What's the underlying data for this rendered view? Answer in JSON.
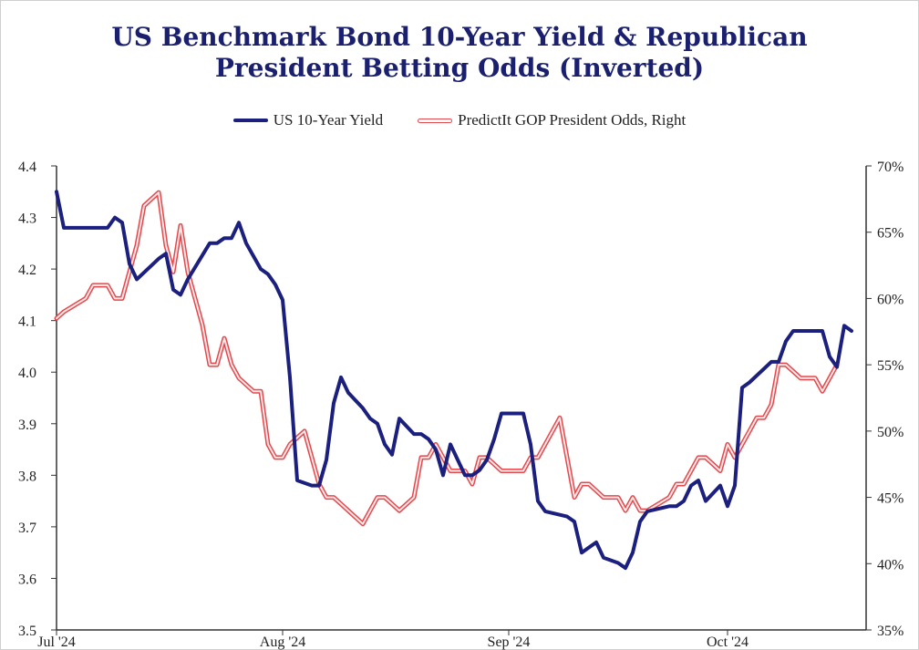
{
  "chart_data": {
    "type": "line",
    "title_line1": "US Benchmark Bond 10-Year Yield & Republican",
    "title_line2": "President Betting Odds (Inverted)",
    "legend": [
      "US 10-Year Yield",
      "PredictIt GOP President Odds, Right"
    ],
    "x_ticks": [
      "Jul '24",
      "Aug '24",
      "Sep '24",
      "Oct '24"
    ],
    "y_left": {
      "min": 3.5,
      "max": 4.4,
      "ticks": [
        "3.5",
        "3.6",
        "3.7",
        "3.8",
        "3.9",
        "4.0",
        "4.1",
        "4.2",
        "4.3",
        "4.4"
      ]
    },
    "y_right": {
      "min": 35,
      "max": 70,
      "ticks": [
        "35%",
        "40%",
        "45%",
        "50%",
        "55%",
        "60%",
        "65%",
        "70%"
      ]
    },
    "series": [
      {
        "name": "US 10-Year Yield",
        "color": "#1b1f7e",
        "axis": "left",
        "points": [
          [
            "2024-07-01",
            4.35
          ],
          [
            "2024-07-02",
            4.28
          ],
          [
            "2024-07-05",
            4.28
          ],
          [
            "2024-07-08",
            4.28
          ],
          [
            "2024-07-09",
            4.3
          ],
          [
            "2024-07-10",
            4.29
          ],
          [
            "2024-07-11",
            4.21
          ],
          [
            "2024-07-12",
            4.18
          ],
          [
            "2024-07-15",
            4.22
          ],
          [
            "2024-07-16",
            4.23
          ],
          [
            "2024-07-17",
            4.16
          ],
          [
            "2024-07-18",
            4.15
          ],
          [
            "2024-07-19",
            4.18
          ],
          [
            "2024-07-22",
            4.25
          ],
          [
            "2024-07-23",
            4.25
          ],
          [
            "2024-07-24",
            4.26
          ],
          [
            "2024-07-25",
            4.26
          ],
          [
            "2024-07-26",
            4.29
          ],
          [
            "2024-07-27",
            4.25
          ],
          [
            "2024-07-29",
            4.2
          ],
          [
            "2024-07-30",
            4.19
          ],
          [
            "2024-07-31",
            4.17
          ],
          [
            "2024-08-01",
            4.14
          ],
          [
            "2024-08-02",
            3.99
          ],
          [
            "2024-08-03",
            3.79
          ],
          [
            "2024-08-05",
            3.78
          ],
          [
            "2024-08-06",
            3.78
          ],
          [
            "2024-08-07",
            3.83
          ],
          [
            "2024-08-08",
            3.94
          ],
          [
            "2024-08-09",
            3.99
          ],
          [
            "2024-08-10",
            3.96
          ],
          [
            "2024-08-12",
            3.93
          ],
          [
            "2024-08-13",
            3.91
          ],
          [
            "2024-08-14",
            3.9
          ],
          [
            "2024-08-15",
            3.86
          ],
          [
            "2024-08-16",
            3.84
          ],
          [
            "2024-08-17",
            3.91
          ],
          [
            "2024-08-19",
            3.88
          ],
          [
            "2024-08-20",
            3.88
          ],
          [
            "2024-08-21",
            3.87
          ],
          [
            "2024-08-22",
            3.85
          ],
          [
            "2024-08-23",
            3.8
          ],
          [
            "2024-08-24",
            3.86
          ],
          [
            "2024-08-26",
            3.8
          ],
          [
            "2024-08-27",
            3.8
          ],
          [
            "2024-08-28",
            3.81
          ],
          [
            "2024-08-29",
            3.83
          ],
          [
            "2024-08-30",
            3.87
          ],
          [
            "2024-08-31",
            3.92
          ],
          [
            "2024-09-03",
            3.92
          ],
          [
            "2024-09-04",
            3.86
          ],
          [
            "2024-09-05",
            3.75
          ],
          [
            "2024-09-06",
            3.73
          ],
          [
            "2024-09-09",
            3.72
          ],
          [
            "2024-09-10",
            3.71
          ],
          [
            "2024-09-11",
            3.65
          ],
          [
            "2024-09-12",
            3.66
          ],
          [
            "2024-09-13",
            3.67
          ],
          [
            "2024-09-14",
            3.64
          ],
          [
            "2024-09-16",
            3.63
          ],
          [
            "2024-09-17",
            3.62
          ],
          [
            "2024-09-18",
            3.65
          ],
          [
            "2024-09-19",
            3.71
          ],
          [
            "2024-09-20",
            3.73
          ],
          [
            "2024-09-23",
            3.74
          ],
          [
            "2024-09-24",
            3.74
          ],
          [
            "2024-09-25",
            3.75
          ],
          [
            "2024-09-26",
            3.78
          ],
          [
            "2024-09-27",
            3.79
          ],
          [
            "2024-09-28",
            3.75
          ],
          [
            "2024-09-30",
            3.78
          ],
          [
            "2024-10-01",
            3.74
          ],
          [
            "2024-10-02",
            3.78
          ],
          [
            "2024-10-03",
            3.97
          ],
          [
            "2024-10-04",
            3.98
          ],
          [
            "2024-10-07",
            4.02
          ],
          [
            "2024-10-08",
            4.02
          ],
          [
            "2024-10-09",
            4.06
          ],
          [
            "2024-10-10",
            4.08
          ],
          [
            "2024-10-11",
            4.08
          ],
          [
            "2024-10-14",
            4.08
          ],
          [
            "2024-10-15",
            4.03
          ],
          [
            "2024-10-16",
            4.01
          ],
          [
            "2024-10-17",
            4.09
          ],
          [
            "2024-10-18",
            4.08
          ]
        ]
      },
      {
        "name": "PredictIt GOP President Odds, Right",
        "color": "#e5484d",
        "axis": "right",
        "points": [
          [
            "2024-07-01",
            58.5
          ],
          [
            "2024-07-02",
            59
          ],
          [
            "2024-07-05",
            60
          ],
          [
            "2024-07-06",
            61
          ],
          [
            "2024-07-08",
            61
          ],
          [
            "2024-07-09",
            60
          ],
          [
            "2024-07-10",
            60
          ],
          [
            "2024-07-11",
            62
          ],
          [
            "2024-07-12",
            64
          ],
          [
            "2024-07-13",
            67
          ],
          [
            "2024-07-15",
            68
          ],
          [
            "2024-07-16",
            64
          ],
          [
            "2024-07-17",
            62
          ],
          [
            "2024-07-18",
            65.5
          ],
          [
            "2024-07-19",
            62
          ],
          [
            "2024-07-20",
            60
          ],
          [
            "2024-07-21",
            58
          ],
          [
            "2024-07-22",
            55
          ],
          [
            "2024-07-23",
            55
          ],
          [
            "2024-07-24",
            57
          ],
          [
            "2024-07-25",
            55
          ],
          [
            "2024-07-26",
            54
          ],
          [
            "2024-07-28",
            53
          ],
          [
            "2024-07-29",
            53
          ],
          [
            "2024-07-30",
            49
          ],
          [
            "2024-07-31",
            48
          ],
          [
            "2024-08-01",
            48
          ],
          [
            "2024-08-02",
            49
          ],
          [
            "2024-08-04",
            50
          ],
          [
            "2024-08-05",
            48
          ],
          [
            "2024-08-06",
            46
          ],
          [
            "2024-08-07",
            45
          ],
          [
            "2024-08-08",
            45
          ],
          [
            "2024-08-09",
            44.5
          ],
          [
            "2024-08-10",
            44
          ],
          [
            "2024-08-12",
            43
          ],
          [
            "2024-08-13",
            44
          ],
          [
            "2024-08-14",
            45
          ],
          [
            "2024-08-15",
            45
          ],
          [
            "2024-08-16",
            44.5
          ],
          [
            "2024-08-17",
            44
          ],
          [
            "2024-08-19",
            45
          ],
          [
            "2024-08-20",
            48
          ],
          [
            "2024-08-21",
            48
          ],
          [
            "2024-08-22",
            49
          ],
          [
            "2024-08-23",
            48
          ],
          [
            "2024-08-24",
            47
          ],
          [
            "2024-08-26",
            47
          ],
          [
            "2024-08-27",
            46
          ],
          [
            "2024-08-28",
            48
          ],
          [
            "2024-08-29",
            48
          ],
          [
            "2024-08-30",
            47.5
          ],
          [
            "2024-08-31",
            47
          ],
          [
            "2024-09-03",
            47
          ],
          [
            "2024-09-04",
            48
          ],
          [
            "2024-09-05",
            48
          ],
          [
            "2024-09-06",
            49
          ],
          [
            "2024-09-07",
            50
          ],
          [
            "2024-09-08",
            51
          ],
          [
            "2024-09-09",
            48
          ],
          [
            "2024-09-10",
            45
          ],
          [
            "2024-09-11",
            46
          ],
          [
            "2024-09-12",
            46
          ],
          [
            "2024-09-13",
            45.5
          ],
          [
            "2024-09-14",
            45
          ],
          [
            "2024-09-16",
            45
          ],
          [
            "2024-09-17",
            44
          ],
          [
            "2024-09-18",
            45
          ],
          [
            "2024-09-19",
            44
          ],
          [
            "2024-09-20",
            44
          ],
          [
            "2024-09-23",
            45
          ],
          [
            "2024-09-24",
            46
          ],
          [
            "2024-09-25",
            46
          ],
          [
            "2024-09-26",
            47
          ],
          [
            "2024-09-27",
            48
          ],
          [
            "2024-09-28",
            48
          ],
          [
            "2024-09-30",
            47
          ],
          [
            "2024-10-01",
            49
          ],
          [
            "2024-10-02",
            48
          ],
          [
            "2024-10-03",
            49
          ],
          [
            "2024-10-04",
            50
          ],
          [
            "2024-10-05",
            51
          ],
          [
            "2024-10-06",
            51
          ],
          [
            "2024-10-07",
            52
          ],
          [
            "2024-10-08",
            55
          ],
          [
            "2024-10-09",
            55
          ],
          [
            "2024-10-10",
            54.5
          ],
          [
            "2024-10-11",
            54
          ],
          [
            "2024-10-13",
            54
          ],
          [
            "2024-10-14",
            53
          ],
          [
            "2024-10-15",
            54
          ],
          [
            "2024-10-16",
            55
          ]
        ]
      }
    ]
  }
}
